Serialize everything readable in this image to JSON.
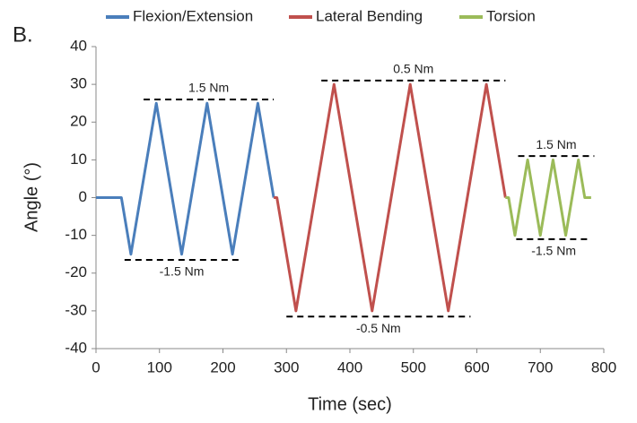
{
  "chart_data": {
    "type": "line",
    "panel_label": "B.",
    "x_label": "Time (sec)",
    "y_label": "Angle (°)",
    "xlim": [
      0,
      800
    ],
    "xticks": [
      0,
      100,
      200,
      300,
      400,
      500,
      600,
      700,
      800
    ],
    "ylim": [
      -40,
      40
    ],
    "yticks": [
      -40,
      -30,
      -20,
      -10,
      0,
      10,
      20,
      30,
      40
    ],
    "grid": false,
    "legend": "top",
    "series": [
      {
        "name": "Flexion/Extension",
        "color": "#4a7ebb",
        "x": [
          0,
          40,
          55,
          95,
          135,
          175,
          215,
          255,
          280
        ],
        "values": [
          0,
          0,
          -15,
          25,
          -15,
          25,
          -15,
          25,
          0
        ]
      },
      {
        "name": "Lateral Bending",
        "color": "#c0504d",
        "x": [
          280,
          285,
          315,
          375,
          435,
          495,
          555,
          615,
          645
        ],
        "values": [
          0,
          0,
          -30,
          30,
          -30,
          30,
          -30,
          30,
          0
        ]
      },
      {
        "name": "Torsion",
        "color": "#9bbb59",
        "x": [
          645,
          650,
          660,
          680,
          700,
          720,
          740,
          760,
          770,
          780
        ],
        "values": [
          0,
          0,
          -10,
          10,
          -10,
          10,
          -10,
          10,
          0,
          0
        ]
      }
    ],
    "annotations": [
      {
        "label": "1.5 Nm",
        "y": 26,
        "x": [
          75,
          280
        ],
        "position": "above"
      },
      {
        "label": "-1.5 Nm",
        "y": -16.5,
        "x": [
          45,
          225
        ],
        "position": "below"
      },
      {
        "label": "0.5 Nm",
        "y": 31,
        "x": [
          355,
          645
        ],
        "position": "above"
      },
      {
        "label": "-0.5 Nm",
        "y": -31.5,
        "x": [
          300,
          590
        ],
        "position": "below"
      },
      {
        "label": "1.5 Nm",
        "y": 11,
        "x": [
          665,
          785
        ],
        "position": "above"
      },
      {
        "label": "-1.5 Nm",
        "y": -11,
        "x": [
          662,
          780
        ],
        "position": "below"
      }
    ]
  }
}
